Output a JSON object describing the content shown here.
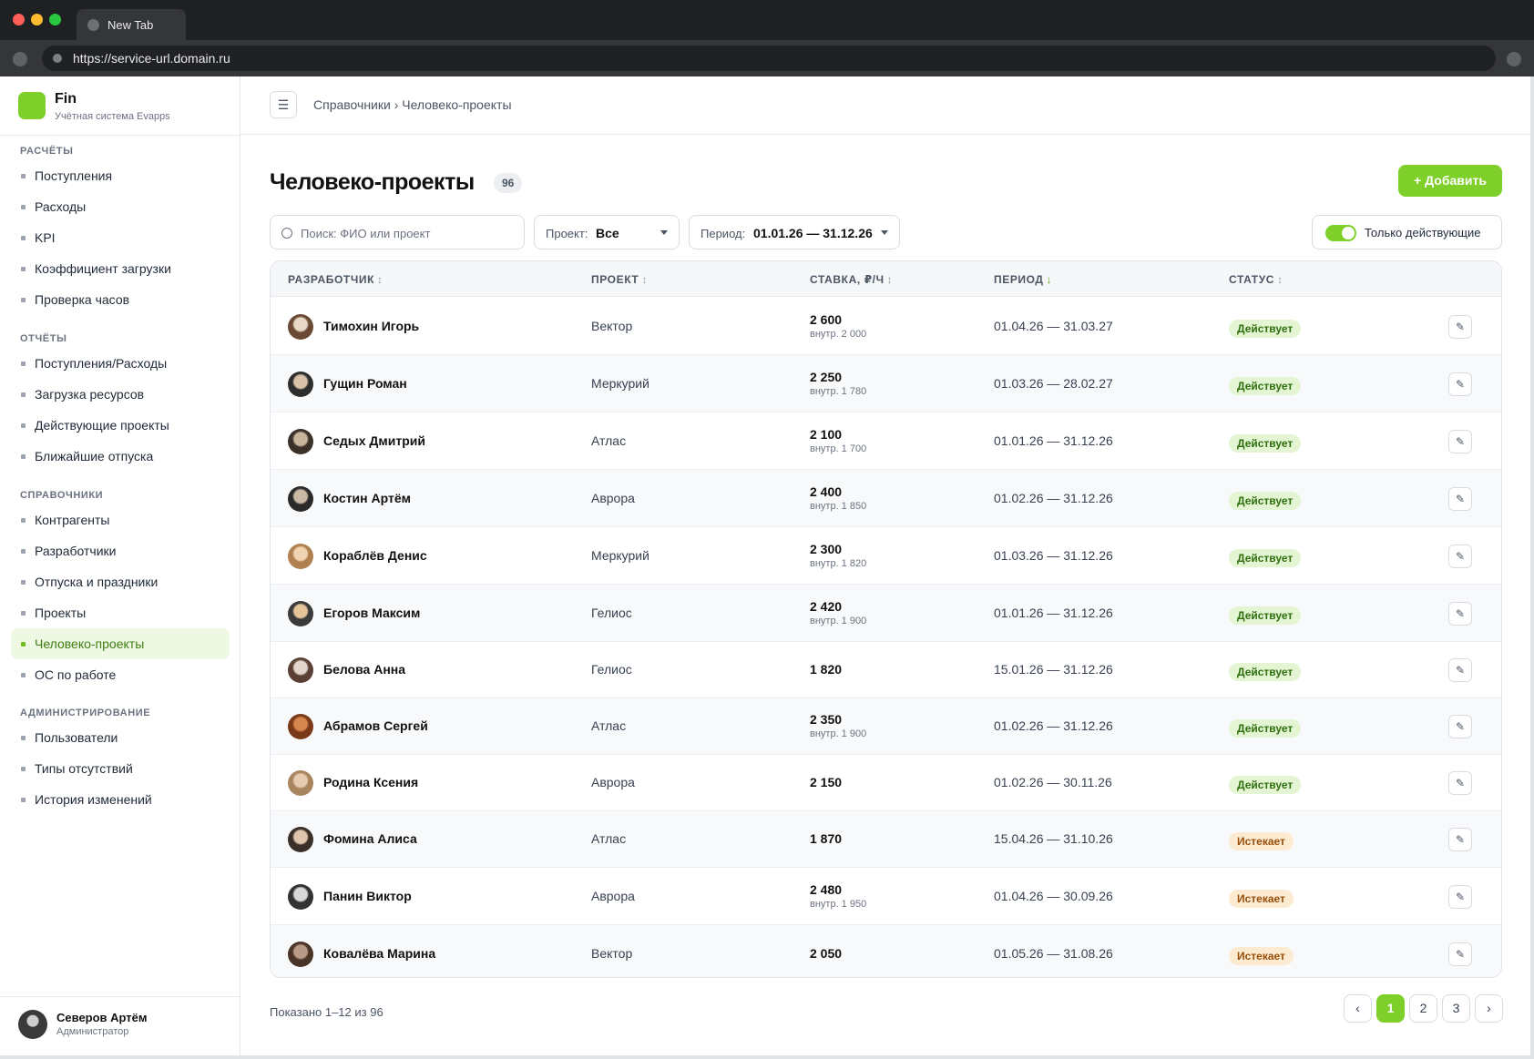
{
  "browser": {
    "tab_title": "New Tab",
    "url": "https://service-url.domain.ru"
  },
  "brand": {
    "name": "Fin",
    "subtitle": "Учётная система Evapps",
    "accent": "#7fcf2a"
  },
  "sidebar": {
    "sections": [
      {
        "title": "РАСЧЁТЫ",
        "items": [
          "Поступления",
          "Расходы",
          "KPI",
          "Коэффициент загрузки",
          "Проверка часов"
        ]
      },
      {
        "title": "ОТЧЁТЫ",
        "items": [
          "Поступления/Расходы",
          "Загрузка ресурсов",
          "Действующие проекты",
          "Ближайшие отпуска"
        ]
      },
      {
        "title": "СПРАВОЧНИКИ",
        "items": [
          "Контрагенты",
          "Разработчики",
          "Отпуска и праздники",
          "Проекты",
          "Человеко-проекты",
          "ОС по работе"
        ]
      },
      {
        "title": "АДМИНИСТРИРОВАНИЕ",
        "items": [
          "Пользователи",
          "Типы отсутствий",
          "История изменений"
        ]
      }
    ],
    "active_item": "Человеко-проекты",
    "user": {
      "name": "Северов Артём",
      "role": "Администратор"
    }
  },
  "topbar": {
    "menu_icon": "☰",
    "breadcrumb": "Справочники › Человеко-проекты"
  },
  "page": {
    "title": "Человеко-проекты",
    "count": "96",
    "add_label": "+ Добавить"
  },
  "filters": {
    "search_placeholder": "Поиск: ФИО или проект",
    "project_label": "Проект:",
    "project_value": "Все",
    "period_label": "Период:",
    "period_value": "01.01.26 — 31.12.26",
    "only_active_label": "Только действующие",
    "only_active_on": true
  },
  "table": {
    "columns": [
      {
        "label": "РАЗРАБОТЧИК",
        "sort": "↕"
      },
      {
        "label": "ПРОЕКТ",
        "sort": "↕"
      },
      {
        "label": "СТАВКА, ₽/Ч",
        "sort": "↕"
      },
      {
        "label": "ПЕРИОД",
        "sort": "↓"
      },
      {
        "label": "СТАТУС",
        "sort": "↕"
      }
    ],
    "edit_icon": "✎",
    "rows": [
      {
        "name": "Тимохин Игорь",
        "project": "Вектор",
        "rate": "2 600",
        "internal": "внутр. 2 000",
        "period": "01.04.26 — 31.03.27",
        "status": "Действует",
        "status_kind": "active"
      },
      {
        "name": "Гущин Роман",
        "project": "Меркурий",
        "rate": "2 250",
        "internal": "внутр. 1 780",
        "period": "01.03.26 — 28.02.27",
        "status": "Действует",
        "status_kind": "active"
      },
      {
        "name": "Седых Дмитрий",
        "project": "Атлас",
        "rate": "2 100",
        "internal": "внутр. 1 700",
        "period": "01.01.26 — 31.12.26",
        "status": "Действует",
        "status_kind": "active"
      },
      {
        "name": "Костин Артём",
        "project": "Аврора",
        "rate": "2 400",
        "internal": "внутр. 1 850",
        "period": "01.02.26 — 31.12.26",
        "status": "Действует",
        "status_kind": "active"
      },
      {
        "name": "Кораблёв Денис",
        "project": "Меркурий",
        "rate": "2 300",
        "internal": "внутр. 1 820",
        "period": "01.03.26 — 31.12.26",
        "status": "Действует",
        "status_kind": "active"
      },
      {
        "name": "Егоров Максим",
        "project": "Гелиос",
        "rate": "2 420",
        "internal": "внутр. 1 900",
        "period": "01.01.26 — 31.12.26",
        "status": "Действует",
        "status_kind": "active"
      },
      {
        "name": "Белова Анна",
        "project": "Гелиос",
        "rate": "1 820",
        "internal": "",
        "period": "15.01.26 — 31.12.26",
        "status": "Действует",
        "status_kind": "active"
      },
      {
        "name": "Абрамов Сергей",
        "project": "Атлас",
        "rate": "2 350",
        "internal": "внутр. 1 900",
        "period": "01.02.26 — 31.12.26",
        "status": "Действует",
        "status_kind": "active"
      },
      {
        "name": "Родина Ксения",
        "project": "Аврора",
        "rate": "2 150",
        "internal": "",
        "period": "01.02.26 — 30.11.26",
        "status": "Действует",
        "status_kind": "active"
      },
      {
        "name": "Фомина Алиса",
        "project": "Атлас",
        "rate": "1 870",
        "internal": "",
        "period": "15.04.26 — 31.10.26",
        "status": "Истекает",
        "status_kind": "expiring"
      },
      {
        "name": "Панин Виктор",
        "project": "Аврора",
        "rate": "2 480",
        "internal": "внутр. 1 950",
        "period": "01.04.26 — 30.09.26",
        "status": "Истекает",
        "status_kind": "expiring"
      },
      {
        "name": "Ковалёва Марина",
        "project": "Вектор",
        "rate": "2 050",
        "internal": "",
        "period": "01.05.26 — 31.08.26",
        "status": "Истекает",
        "status_kind": "expiring"
      }
    ]
  },
  "footer": {
    "shown": "Показано 1–12 из 96",
    "prev": "‹",
    "pages": [
      "1",
      "2",
      "3"
    ],
    "current_page": "1",
    "next": "›"
  }
}
